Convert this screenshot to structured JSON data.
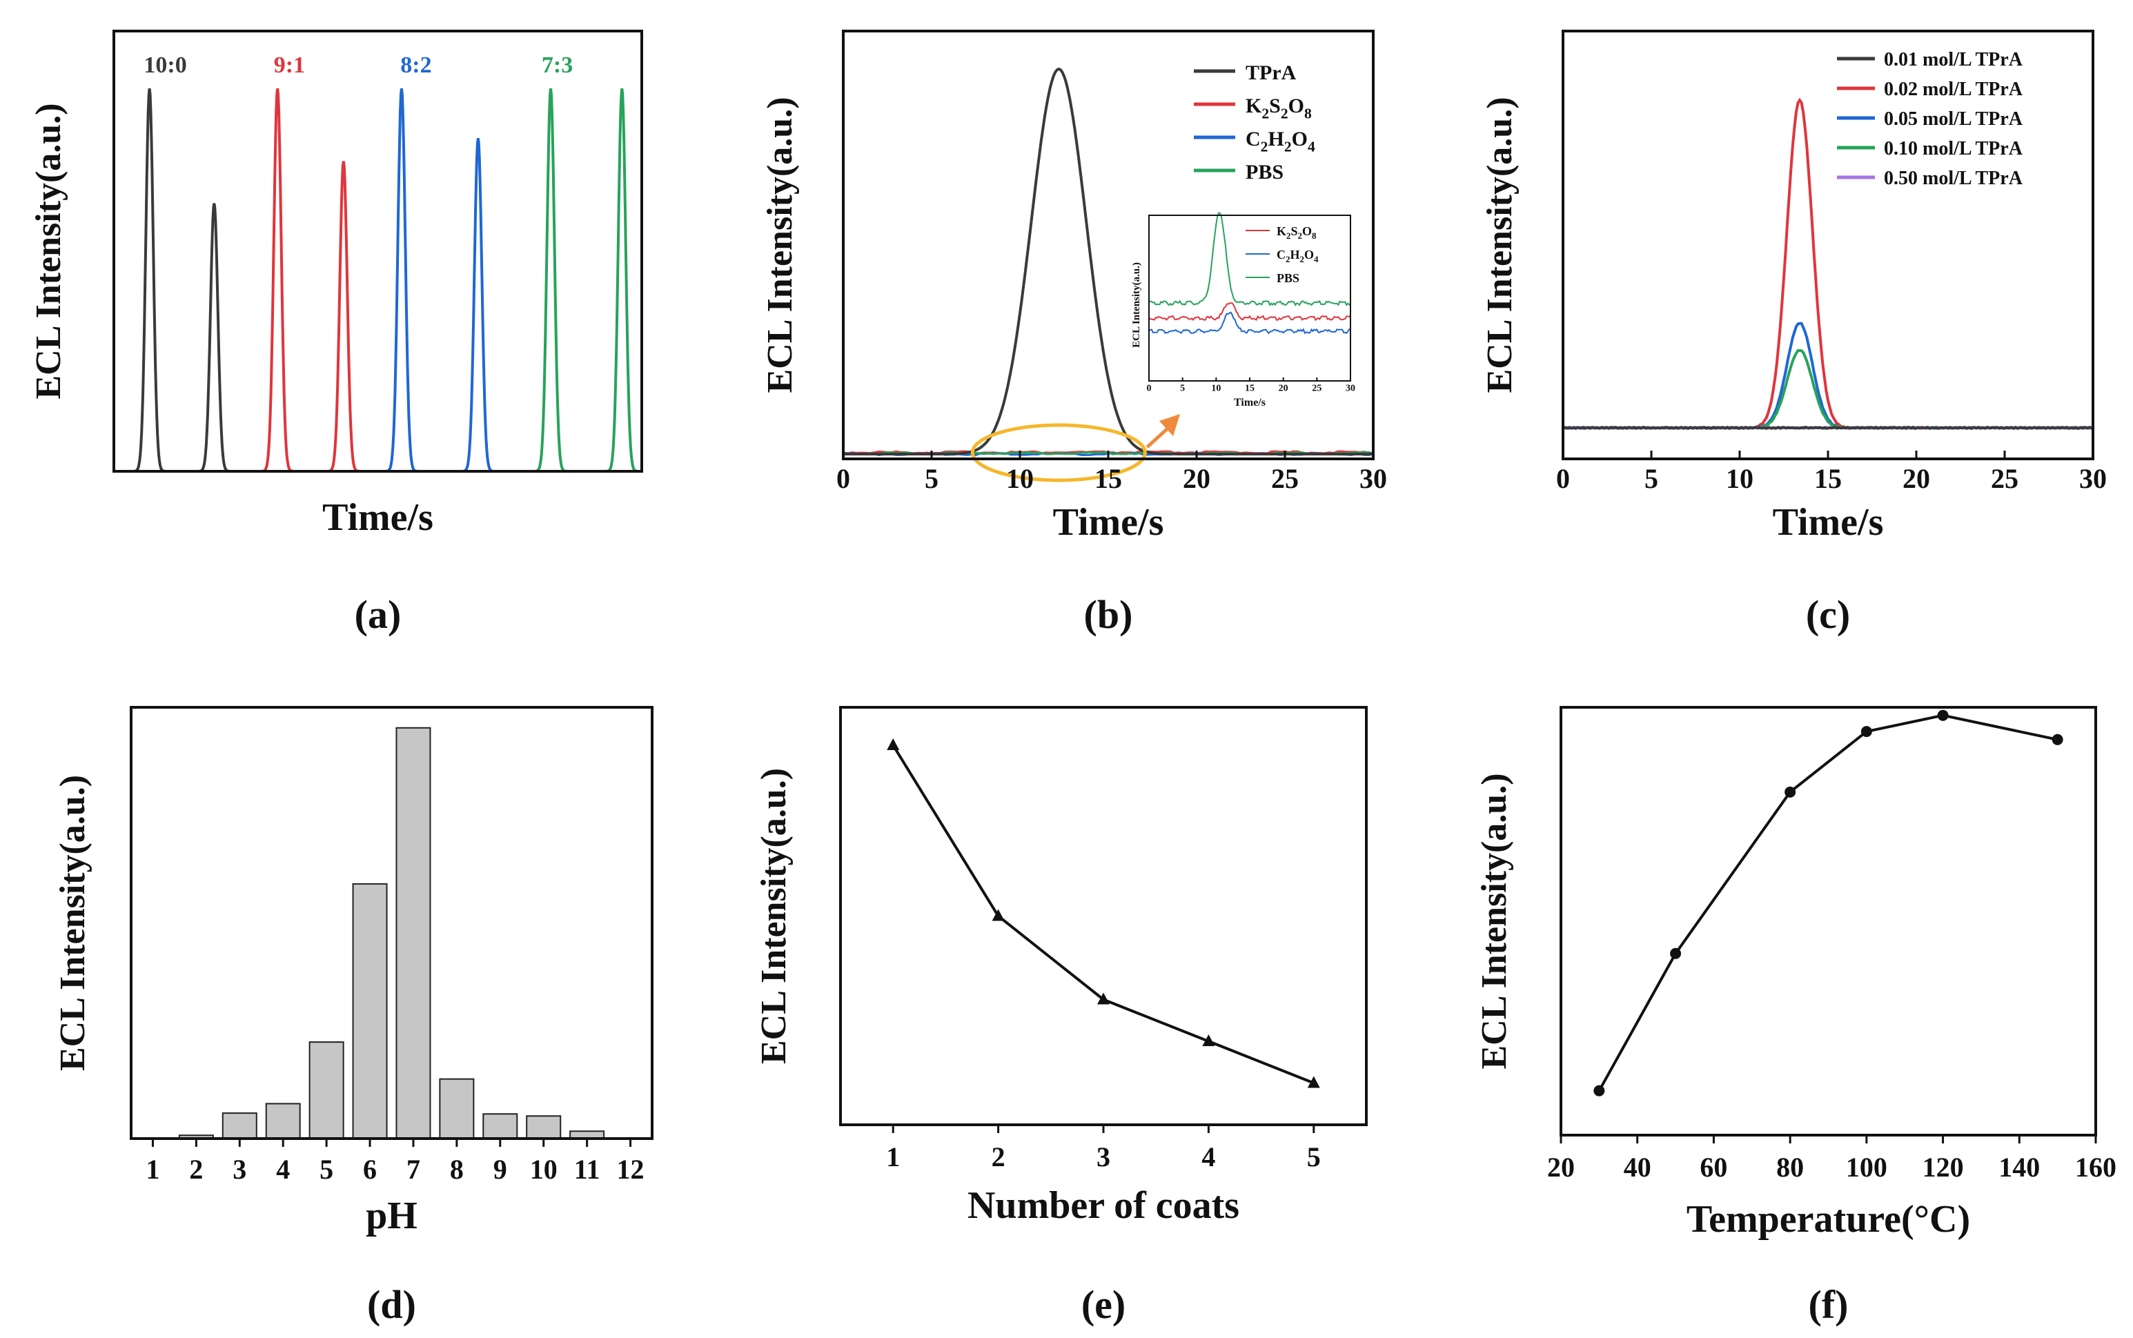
{
  "figure": {
    "panels": [
      "(a)",
      "(b)",
      "(c)",
      "(d)",
      "(e)",
      "(f)"
    ]
  },
  "colors": {
    "black": "#3a3a3a",
    "red": "#e0353c",
    "blue": "#1f67d4",
    "green": "#27a35a",
    "purple": "#a673e6",
    "bar_fill": "#c6c6c6",
    "orange": "#f6b72c",
    "arrow": "#ef8a3c"
  },
  "chart_data": [
    {
      "id": "a",
      "type": "line",
      "xlabel": "Time/s",
      "ylabel": "ECL Intensity(a.u.)",
      "xlim": [
        0,
        40
      ],
      "ylim": [
        0,
        1.15
      ],
      "ticks": "none",
      "series": [
        {
          "name": "10:0",
          "color": "#3a3a3a",
          "x_range": [
            0,
            10
          ],
          "peaks": [
            {
              "x": 2.7,
              "height": 1.0
            },
            {
              "x": 7.6,
              "height": 0.7
            }
          ]
        },
        {
          "name": "9:1",
          "color": "#e0353c",
          "x_range": [
            10,
            20
          ],
          "peaks": [
            {
              "x": 12.4,
              "height": 1.0
            },
            {
              "x": 17.4,
              "height": 0.81
            }
          ]
        },
        {
          "name": "8:2",
          "color": "#1f67d4",
          "x_range": [
            20,
            30
          ],
          "peaks": [
            {
              "x": 21.8,
              "height": 1.0
            },
            {
              "x": 27.6,
              "height": 0.87
            }
          ]
        },
        {
          "name": "7:3",
          "color": "#27a35a",
          "x_range": [
            30,
            40
          ],
          "peaks": [
            {
              "x": 33.1,
              "height": 1.0
            },
            {
              "x": 38.5,
              "height": 1.0
            }
          ]
        }
      ],
      "labels": [
        "10:0",
        "9:1",
        "8:2",
        "7:3"
      ]
    },
    {
      "id": "b",
      "type": "line",
      "xlabel": "Time/s",
      "ylabel": "ECL Intensity(a.u.)",
      "xlim": [
        0,
        30
      ],
      "ylim": [
        0,
        1.1
      ],
      "xticks": [
        0,
        5,
        10,
        15,
        20,
        25,
        30
      ],
      "legend": [
        "TPrA",
        "K2S2O8",
        "C2H2O4",
        "PBS"
      ],
      "series": [
        {
          "name": "TPrA",
          "color": "#3a3a3a",
          "peak_x": 12.2,
          "peak_height": 1.0,
          "baseline": 0.0
        },
        {
          "name": "K2S2O8",
          "color": "#e0353c",
          "baseline": 0.004
        },
        {
          "name": "C2H2O4",
          "color": "#1f67d4",
          "baseline": 0.0
        },
        {
          "name": "PBS",
          "color": "#27a35a",
          "baseline": 0.002
        }
      ],
      "inset": {
        "xlabel": "Time/s",
        "ylabel": "ECL Intensity(a.u.)",
        "xlim": [
          0,
          30
        ],
        "xticks": [
          0,
          5,
          10,
          15,
          20,
          25,
          30
        ],
        "legend": [
          "K2S2O8",
          "C2H2O4",
          "PBS"
        ],
        "series": [
          {
            "name": "K2S2O8",
            "color": "#e0353c",
            "baseline": 0.38,
            "peak_x": 12,
            "peak_height": 0.1
          },
          {
            "name": "C2H2O4",
            "color": "#1f67d4",
            "baseline": 0.3,
            "peak_x": 12,
            "peak_height": 0.12
          },
          {
            "name": "PBS",
            "color": "#27a35a",
            "baseline": 0.47,
            "peak_x": 10.5,
            "peak_height": 0.55
          }
        ]
      }
    },
    {
      "id": "c",
      "type": "line",
      "xlabel": "Time/s",
      "ylabel": "ECL Intensity(a.u.)",
      "xlim": [
        0,
        30
      ],
      "ylim": [
        0,
        1.15
      ],
      "xticks": [
        0,
        5,
        10,
        15,
        20,
        25,
        30
      ],
      "legend": [
        "0.01 mol/L TPrA",
        "0.02 mol/L TPrA",
        "0.05 mol/L TPrA",
        "0.10 mol/L TPrA",
        "0.50 mol/L TPrA"
      ],
      "series": [
        {
          "name": "0.01 mol/L TPrA",
          "color": "#3a3a3a",
          "peak_x": 13.4,
          "peak_height": 0.0
        },
        {
          "name": "0.02 mol/L TPrA",
          "color": "#e0353c",
          "peak_x": 13.4,
          "peak_height": 0.97
        },
        {
          "name": "0.05 mol/L TPrA",
          "color": "#1f67d4",
          "peak_x": 13.4,
          "peak_height": 0.31
        },
        {
          "name": "0.10 mol/L TPrA",
          "color": "#27a35a",
          "peak_x": 13.4,
          "peak_height": 0.23
        },
        {
          "name": "0.50 mol/L TPrA",
          "color": "#a673e6",
          "peak_x": 13.4,
          "peak_height": 0.0
        }
      ]
    },
    {
      "id": "d",
      "type": "bar",
      "xlabel": "pH",
      "ylabel": "ECL Intensity(a.u.)",
      "xlim": [
        0.5,
        12.5
      ],
      "ylim": [
        0,
        1.05
      ],
      "categories": [
        "1",
        "2",
        "3",
        "4",
        "5",
        "6",
        "7",
        "8",
        "9",
        "10",
        "11",
        "12"
      ],
      "values": [
        0,
        0.008,
        0.062,
        0.085,
        0.235,
        0.62,
        1.0,
        0.145,
        0.06,
        0.055,
        0.018,
        0
      ]
    },
    {
      "id": "e",
      "type": "line",
      "xlabel": "Number of coats",
      "ylabel": "ECL Intensity(a.u.)",
      "xlim": [
        0.5,
        5.5
      ],
      "ylim": [
        0,
        1.1
      ],
      "xticks": [
        1,
        2,
        3,
        4,
        5
      ],
      "marker": "triangle",
      "x": [
        1,
        2,
        3,
        4,
        5
      ],
      "y": [
        1.0,
        0.55,
        0.33,
        0.22,
        0.11
      ]
    },
    {
      "id": "f",
      "type": "line",
      "xlabel": "Temperature(°C)",
      "ylabel": "ECL Intensity(a.u.)",
      "xlim": [
        20,
        160
      ],
      "ylim": [
        0,
        1.06
      ],
      "xticks": [
        20,
        40,
        60,
        80,
        100,
        120,
        140,
        160
      ],
      "marker": "circle",
      "x": [
        30,
        50,
        80,
        100,
        120,
        150
      ],
      "y": [
        0.11,
        0.45,
        0.85,
        1.0,
        1.04,
        0.98
      ]
    }
  ]
}
